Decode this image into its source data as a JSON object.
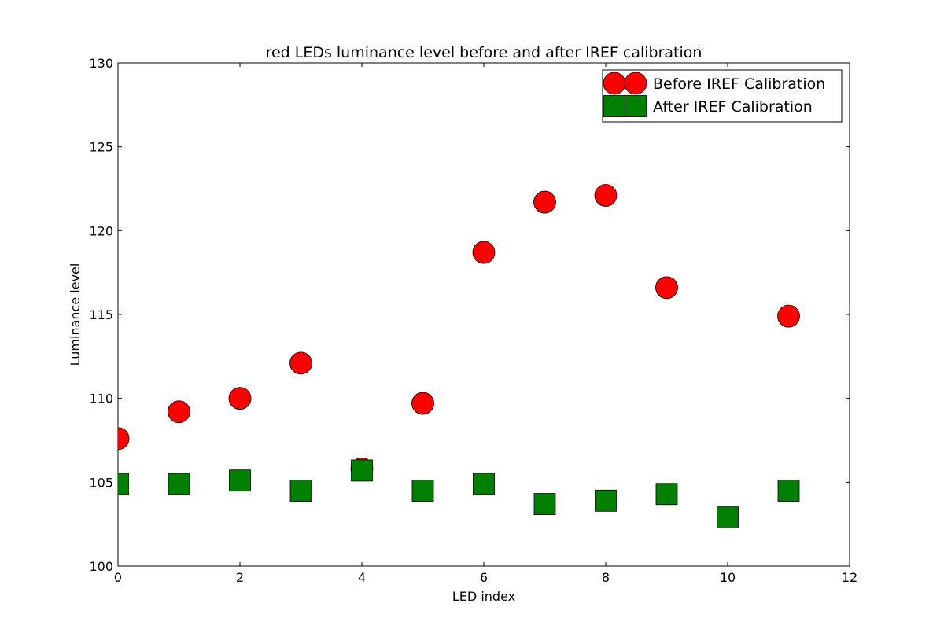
{
  "chart_data": {
    "type": "scatter",
    "title": "red LEDs luminance level before and after IREF calibration",
    "xlabel": "LED index",
    "ylabel": "Luminance level",
    "xlim": [
      0,
      12
    ],
    "ylim": [
      100,
      130
    ],
    "xticks": [
      "0",
      "2",
      "4",
      "6",
      "8",
      "10",
      "12"
    ],
    "yticks": [
      "100",
      "105",
      "110",
      "115",
      "120",
      "125",
      "130"
    ],
    "grid": false,
    "legend_position": "top-right",
    "series": [
      {
        "name": "Before IREF Calibration",
        "marker": "circle",
        "color": "#ff0000",
        "x": [
          0,
          1,
          2,
          3,
          4,
          5,
          6,
          7,
          8,
          9,
          11
        ],
        "y": [
          107.6,
          109.2,
          110.0,
          112.1,
          105.8,
          109.7,
          118.7,
          121.7,
          122.1,
          116.6,
          114.9
        ]
      },
      {
        "name": "After IREF Calibration",
        "marker": "square",
        "color": "#008000",
        "x": [
          0,
          1,
          2,
          3,
          4,
          5,
          6,
          7,
          8,
          9,
          10,
          11
        ],
        "y": [
          104.9,
          104.9,
          105.1,
          104.5,
          105.7,
          104.5,
          104.9,
          103.7,
          103.9,
          104.3,
          102.9,
          104.5
        ]
      }
    ]
  }
}
